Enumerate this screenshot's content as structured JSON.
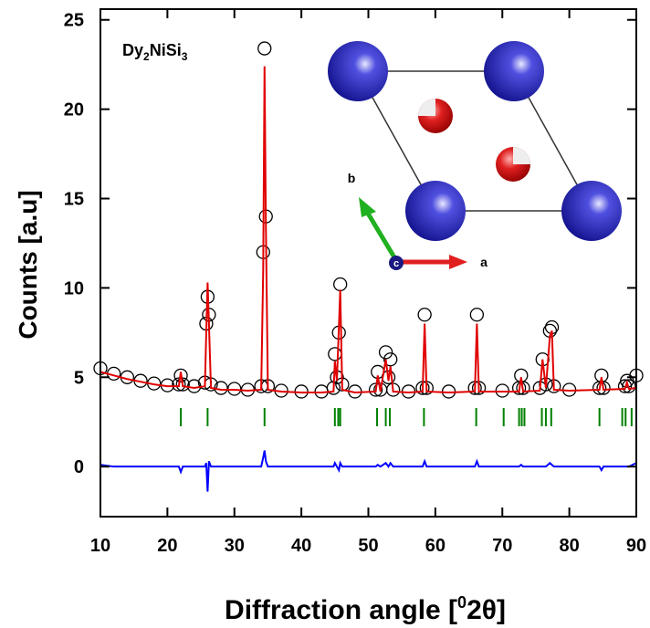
{
  "chart_data": {
    "type": "line",
    "xlabel": [
      "Diffraction angle [",
      "0",
      "2θ]"
    ],
    "ylabel": "Counts [a.u]",
    "annotation": [
      "Dy",
      "2",
      "NiSi",
      "3"
    ],
    "inset_labels": {
      "a": "a",
      "b": "b",
      "c": "c"
    },
    "xlim": [
      10,
      90
    ],
    "xticks": [
      10,
      20,
      30,
      40,
      50,
      60,
      70,
      80,
      90
    ],
    "ylim": [
      -2.8,
      25.6
    ],
    "yticks": [
      0,
      5,
      10,
      15,
      20,
      25
    ],
    "x": [
      10,
      12,
      14,
      16,
      18,
      20,
      21.7,
      22.0,
      22.3,
      24,
      25.6,
      25.8,
      26.0,
      26.2,
      26.5,
      28,
      30,
      32,
      34.0,
      34.3,
      34.5,
      34.7,
      35.0,
      37,
      40,
      43,
      44.8,
      45.0,
      45.3,
      45.6,
      45.8,
      46.1,
      48,
      51.1,
      51.4,
      51.8,
      52.6,
      53.0,
      53.3,
      53.7,
      56,
      58.1,
      58.4,
      58.7,
      62,
      65.9,
      66.2,
      66.5,
      70,
      72.5,
      72.8,
      73.1,
      75.6,
      76.0,
      76.5,
      77.1,
      77.4,
      77.7,
      80,
      84.5,
      84.8,
      85.1,
      88.3,
      88.6,
      88.9,
      90
    ],
    "series": [
      {
        "color": "#000000",
        "marker": "circle",
        "values": [
          5.5,
          5.2,
          5.0,
          4.8,
          4.65,
          4.55,
          4.6,
          5.1,
          4.6,
          4.5,
          4.7,
          8.0,
          9.5,
          8.5,
          4.6,
          4.4,
          4.35,
          4.3,
          4.5,
          12.0,
          23.4,
          14.0,
          4.5,
          4.25,
          4.2,
          4.2,
          4.4,
          6.3,
          5.0,
          7.5,
          10.2,
          4.6,
          4.2,
          4.3,
          5.3,
          4.3,
          6.4,
          5.0,
          6.0,
          4.3,
          4.2,
          4.4,
          8.5,
          4.4,
          4.2,
          4.4,
          8.5,
          4.4,
          4.25,
          4.4,
          5.1,
          4.4,
          4.4,
          6.0,
          4.6,
          7.6,
          7.8,
          4.5,
          4.3,
          4.4,
          5.1,
          4.4,
          4.5,
          4.8,
          4.5,
          5.1
        ]
      },
      {
        "color": "#e00000",
        "values": [
          5.3,
          5.1,
          4.9,
          4.75,
          4.6,
          4.5,
          4.5,
          5.3,
          4.5,
          4.4,
          4.5,
          7.5,
          10.3,
          8.0,
          4.4,
          4.3,
          4.3,
          4.25,
          4.3,
          11.0,
          22.4,
          13.5,
          4.3,
          4.2,
          4.15,
          4.15,
          4.2,
          5.9,
          4.8,
          7.8,
          9.9,
          4.3,
          4.15,
          4.2,
          5.1,
          4.2,
          6.0,
          4.8,
          5.6,
          4.2,
          4.15,
          4.2,
          8.0,
          4.2,
          4.15,
          4.2,
          8.0,
          4.2,
          4.2,
          4.2,
          5.0,
          4.2,
          4.25,
          6.0,
          4.4,
          7.3,
          7.6,
          4.3,
          4.25,
          4.3,
          5.0,
          4.3,
          4.35,
          4.7,
          4.35,
          4.4
        ]
      },
      {
        "color": "#0000ff",
        "values": [
          0.1,
          0.0,
          0.0,
          0.0,
          0.0,
          0.0,
          0.0,
          -0.3,
          0.0,
          0.0,
          0.0,
          0.2,
          -1.4,
          0.3,
          0.0,
          0.0,
          0.0,
          0.0,
          0.0,
          0.5,
          0.9,
          0.3,
          0.0,
          0.0,
          0.0,
          0.0,
          0.0,
          0.2,
          0.0,
          -0.2,
          0.2,
          0.0,
          0.0,
          0.0,
          0.1,
          0.0,
          0.2,
          0.0,
          0.2,
          0.0,
          0.0,
          0.0,
          0.3,
          0.0,
          0.0,
          0.0,
          0.3,
          0.0,
          0.0,
          0.0,
          0.1,
          0.0,
          0.0,
          0.0,
          0.0,
          0.2,
          0.1,
          0.0,
          0.0,
          0.0,
          -0.2,
          0.0,
          0.0,
          0.0,
          0.0,
          0.2
        ]
      }
    ],
    "bragg_color": "#008000",
    "bragg_positions": [
      22.0,
      26.0,
      34.5,
      45.0,
      45.5,
      45.8,
      51.3,
      52.6,
      53.2,
      58.3,
      66.1,
      70.2,
      72.5,
      72.9,
      73.3,
      75.9,
      76.5,
      77.3,
      84.5,
      87.9,
      88.4,
      89.3
    ]
  }
}
